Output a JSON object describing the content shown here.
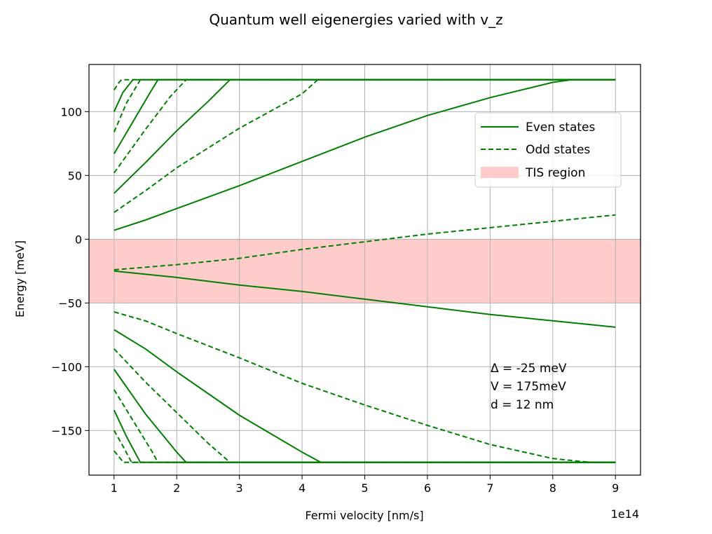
{
  "chart_data": {
    "type": "line",
    "title": "Quantum well eigenergies varied with v_z",
    "xlabel": "Fermi velocity [nm/s]",
    "ylabel": "Energy [meV]",
    "x_offset_label": "1e14",
    "xlim": [
      0.6,
      9.4
    ],
    "ylim": [
      -185,
      137
    ],
    "xticks": [
      1,
      2,
      3,
      4,
      5,
      6,
      7,
      8,
      9
    ],
    "xtick_labels": [
      "1",
      "2",
      "3",
      "4",
      "5",
      "6",
      "7",
      "8",
      "9"
    ],
    "yticks": [
      100,
      50,
      0,
      -50,
      -100,
      -150
    ],
    "ytick_labels": [
      "100",
      "50",
      "0",
      "−50",
      "−100",
      "−150"
    ],
    "grid": true,
    "legend_position": "upper right",
    "legend": [
      {
        "label": "Even states",
        "style": "solid"
      },
      {
        "label": "Odd states",
        "style": "dashed"
      },
      {
        "label": "TIS region",
        "style": "band"
      }
    ],
    "band": {
      "name": "TIS region",
      "y0": -50,
      "y1": 0,
      "color": "#ffb3b3"
    },
    "annotation": [
      "Δ = -25 meV",
      "V = 175meV",
      "d = 12 nm"
    ],
    "colors": {
      "line": "#008000",
      "band": "#ffcccc",
      "grid": "#b0b0b0"
    },
    "series": [
      {
        "style": "solid",
        "points": [
          [
            1,
            7
          ],
          [
            1.5,
            15
          ],
          [
            2,
            24
          ],
          [
            3,
            42
          ],
          [
            4,
            61
          ],
          [
            5,
            80
          ],
          [
            6,
            97
          ],
          [
            7,
            111
          ],
          [
            8,
            123
          ],
          [
            8.3,
            125
          ],
          [
            9,
            125
          ]
        ]
      },
      {
        "style": "dashed",
        "points": [
          [
            1,
            21
          ],
          [
            1.5,
            38
          ],
          [
            2,
            56
          ],
          [
            3,
            87
          ],
          [
            4,
            114
          ],
          [
            4.25,
            125
          ],
          [
            9,
            125
          ]
        ]
      },
      {
        "style": "solid",
        "points": [
          [
            1,
            36
          ],
          [
            1.5,
            60
          ],
          [
            2,
            85
          ],
          [
            2.5,
            108
          ],
          [
            2.85,
            125
          ],
          [
            9,
            125
          ]
        ]
      },
      {
        "style": "dashed",
        "points": [
          [
            1,
            52
          ],
          [
            1.5,
            86
          ],
          [
            1.9,
            112
          ],
          [
            2.15,
            125
          ],
          [
            9,
            125
          ]
        ]
      },
      {
        "style": "solid",
        "points": [
          [
            1,
            67
          ],
          [
            1.3,
            92
          ],
          [
            1.6,
            117
          ],
          [
            1.7,
            125
          ],
          [
            9,
            125
          ]
        ]
      },
      {
        "style": "dashed",
        "points": [
          [
            1,
            84
          ],
          [
            1.2,
            107
          ],
          [
            1.42,
            125
          ],
          [
            9,
            125
          ]
        ]
      },
      {
        "style": "solid",
        "points": [
          [
            1,
            100
          ],
          [
            1.14,
            115
          ],
          [
            1.3,
            125
          ],
          [
            9,
            125
          ]
        ]
      },
      {
        "style": "dashed",
        "points": [
          [
            1,
            117
          ],
          [
            1.08,
            123
          ],
          [
            1.12,
            125
          ],
          [
            9,
            125
          ]
        ]
      },
      {
        "style": "dashed",
        "points": [
          [
            1,
            -24
          ],
          [
            2,
            -20
          ],
          [
            3,
            -15
          ],
          [
            4,
            -8
          ],
          [
            5,
            -2
          ],
          [
            6,
            4
          ],
          [
            7,
            9
          ],
          [
            8,
            14
          ],
          [
            9,
            19
          ]
        ]
      },
      {
        "style": "solid",
        "points": [
          [
            1,
            -25
          ],
          [
            2,
            -30
          ],
          [
            3,
            -36
          ],
          [
            4,
            -41
          ],
          [
            5,
            -47
          ],
          [
            6,
            -53
          ],
          [
            7,
            -59
          ],
          [
            8,
            -64
          ],
          [
            9,
            -69
          ]
        ]
      },
      {
        "style": "dashed",
        "points": [
          [
            1,
            -57
          ],
          [
            1.5,
            -64
          ],
          [
            2,
            -74
          ],
          [
            3,
            -93
          ],
          [
            4,
            -113
          ],
          [
            5,
            -130
          ],
          [
            6,
            -146
          ],
          [
            7,
            -161
          ],
          [
            8,
            -172
          ],
          [
            8.6,
            -175
          ],
          [
            9,
            -175
          ]
        ]
      },
      {
        "style": "solid",
        "points": [
          [
            1,
            -71
          ],
          [
            1.5,
            -86
          ],
          [
            2,
            -104
          ],
          [
            3,
            -138
          ],
          [
            4,
            -167
          ],
          [
            4.3,
            -175
          ],
          [
            9,
            -175
          ]
        ]
      },
      {
        "style": "dashed",
        "points": [
          [
            1,
            -86
          ],
          [
            1.5,
            -112
          ],
          [
            2,
            -136
          ],
          [
            2.5,
            -160
          ],
          [
            2.85,
            -175
          ],
          [
            9,
            -175
          ]
        ]
      },
      {
        "style": "solid",
        "points": [
          [
            1,
            -102
          ],
          [
            1.5,
            -137
          ],
          [
            2,
            -167
          ],
          [
            2.15,
            -175
          ],
          [
            9,
            -175
          ]
        ]
      },
      {
        "style": "dashed",
        "points": [
          [
            1,
            -118
          ],
          [
            1.3,
            -142
          ],
          [
            1.6,
            -166
          ],
          [
            1.7,
            -175
          ],
          [
            9,
            -175
          ]
        ]
      },
      {
        "style": "solid",
        "points": [
          [
            1,
            -134
          ],
          [
            1.2,
            -155
          ],
          [
            1.42,
            -175
          ],
          [
            9,
            -175
          ]
        ]
      },
      {
        "style": "dashed",
        "points": [
          [
            1,
            -150
          ],
          [
            1.15,
            -163
          ],
          [
            1.28,
            -175
          ],
          [
            9,
            -175
          ]
        ]
      },
      {
        "style": "dashed",
        "points": [
          [
            1,
            -166
          ],
          [
            1.1,
            -172
          ],
          [
            1.15,
            -175
          ],
          [
            9,
            -175
          ]
        ]
      }
    ]
  }
}
